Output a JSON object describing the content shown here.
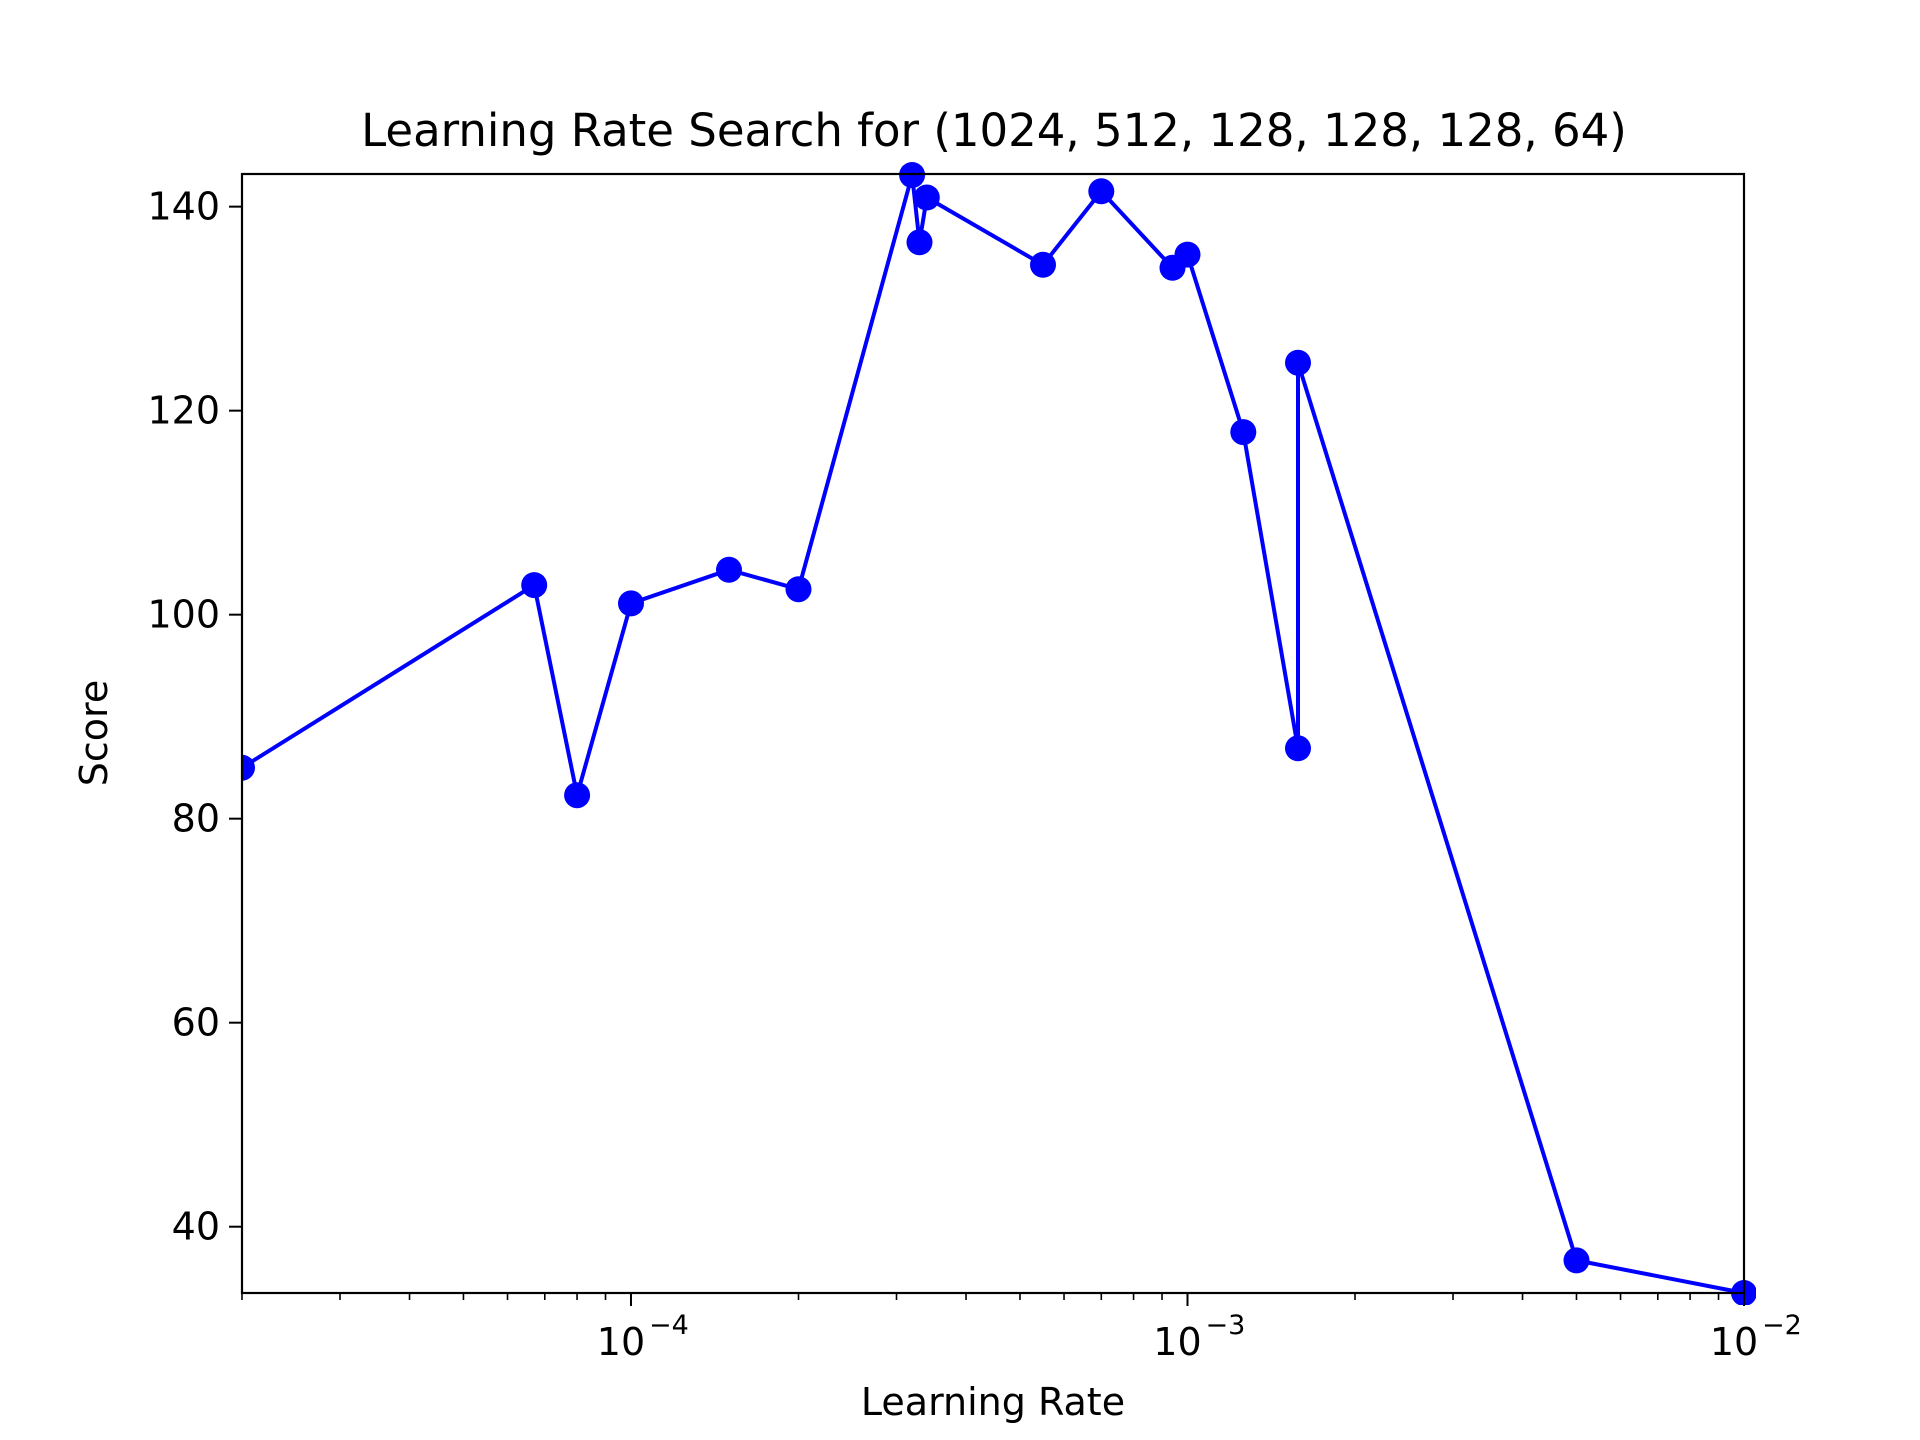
{
  "chart_data": {
    "type": "line",
    "title": "Learning Rate Search for (1024, 512, 128, 128, 128, 64)",
    "xlabel": "Learning Rate",
    "ylabel": "Score",
    "xscale": "log",
    "xlim": [
      2e-05,
      0.01
    ],
    "ylim": [
      33.5,
      143.2
    ],
    "grid": false,
    "x_tick_labels": [
      {
        "base": "10",
        "exp": "−4",
        "value": 0.0001
      },
      {
        "base": "10",
        "exp": "−3",
        "value": 0.001
      },
      {
        "base": "10",
        "exp": "−2",
        "value": 0.01
      }
    ],
    "y_ticks": [
      40,
      60,
      80,
      100,
      120,
      140
    ],
    "series": [
      {
        "color": "#0000ff",
        "marker": "circle",
        "points": [
          {
            "x": 2e-05,
            "y": 85.0
          },
          {
            "x": 6.7e-05,
            "y": 102.9
          },
          {
            "x": 8e-05,
            "y": 82.3
          },
          {
            "x": 0.0001,
            "y": 101.1
          },
          {
            "x": 0.00015,
            "y": 104.4
          },
          {
            "x": 0.0002,
            "y": 102.5
          },
          {
            "x": 0.00032,
            "y": 143.1
          },
          {
            "x": 0.00033,
            "y": 136.5
          },
          {
            "x": 0.00034,
            "y": 140.9
          },
          {
            "x": 0.00055,
            "y": 134.3
          },
          {
            "x": 0.0007,
            "y": 141.5
          },
          {
            "x": 0.00094,
            "y": 134.0
          },
          {
            "x": 0.001,
            "y": 135.3
          },
          {
            "x": 0.00126,
            "y": 117.9
          },
          {
            "x": 0.00158,
            "y": 86.9
          },
          {
            "x": 0.00158,
            "y": 124.7
          },
          {
            "x": 0.005,
            "y": 36.7
          },
          {
            "x": 0.01,
            "y": 33.5
          }
        ]
      }
    ]
  }
}
